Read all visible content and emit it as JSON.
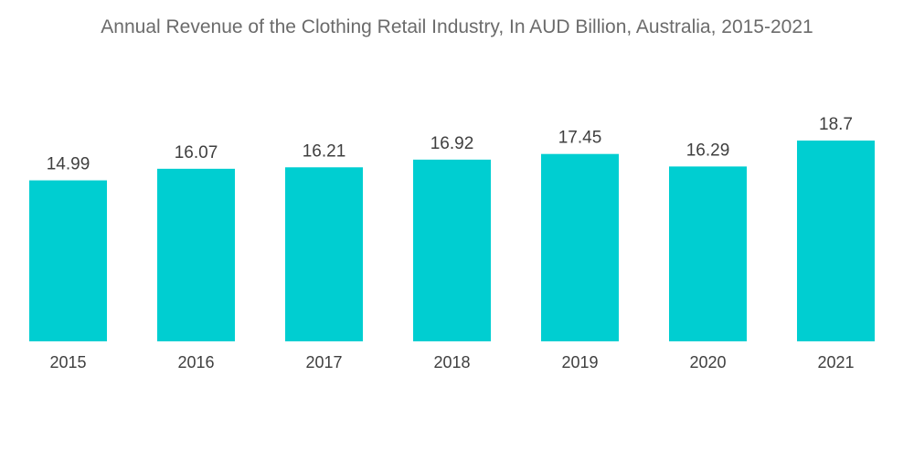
{
  "chart_data": {
    "type": "bar",
    "title": "Annual Revenue of the Clothing Retail Industry, In AUD Billion, Australia, 2015-2021",
    "categories": [
      "2015",
      "2016",
      "2017",
      "2018",
      "2019",
      "2020",
      "2021"
    ],
    "values": [
      14.99,
      16.07,
      16.21,
      16.92,
      17.45,
      16.29,
      18.7
    ],
    "value_labels": [
      "14.99",
      "16.07",
      "16.21",
      "16.92",
      "17.45",
      "16.29",
      "18.7"
    ],
    "ylim": [
      0,
      18.7
    ],
    "grid": false,
    "legend": "none",
    "bar_color": "#00ced1"
  }
}
